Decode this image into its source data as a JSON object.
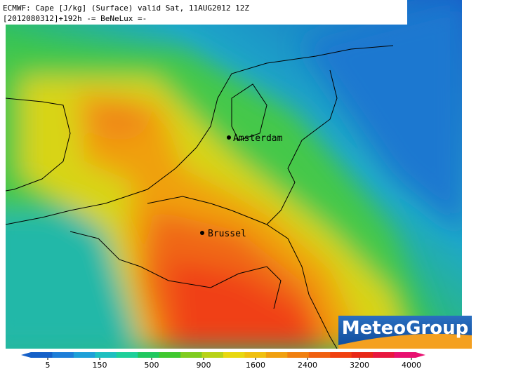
{
  "header": {
    "line1": "ECMWF: Cape [J/kg] (Surface) valid Sat, 11AUG2012 12Z",
    "line2": "[2012080312]+192h -= BeNeLux =-"
  },
  "cities": [
    {
      "label": "Amsterdam"
    },
    {
      "label": "Brussel"
    }
  ],
  "logo": {
    "text": "MeteoGroup"
  },
  "colorbar": {
    "ticks": [
      5,
      150,
      500,
      900,
      1600,
      2400,
      3200,
      4000
    ],
    "colors": [
      "#1560c8",
      "#1e7ed8",
      "#1ea0d8",
      "#1ec0c0",
      "#1ed09a",
      "#20c860",
      "#40c830",
      "#80cc20",
      "#b8d218",
      "#e8d810",
      "#f0c010",
      "#f0a010",
      "#f08010",
      "#f06010",
      "#f04010",
      "#e82818",
      "#e81840",
      "#e81070"
    ]
  }
}
